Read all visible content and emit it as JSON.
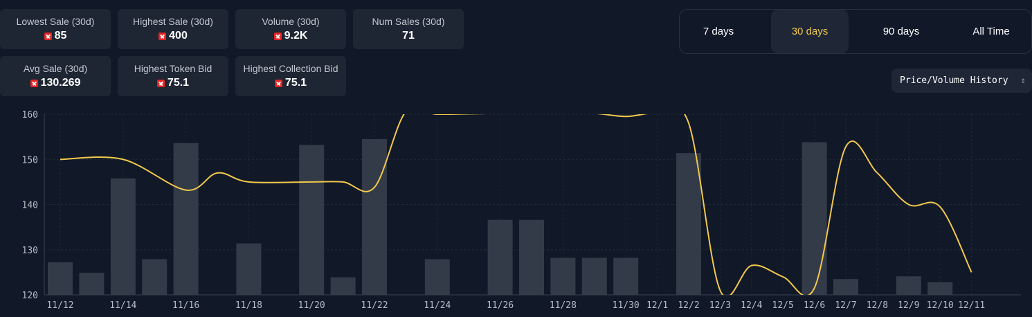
{
  "stats": [
    {
      "label": "Lowest Sale (30d)",
      "value": "85",
      "token": true
    },
    {
      "label": "Highest Sale (30d)",
      "value": "400",
      "token": true
    },
    {
      "label": "Volume (30d)",
      "value": "9.2K",
      "token": true
    },
    {
      "label": "Num Sales (30d)",
      "value": "71",
      "token": false
    },
    {
      "label": "Avg Sale (30d)",
      "value": "130.269",
      "token": true
    },
    {
      "label": "Highest Token Bid",
      "value": "75.1",
      "token": true
    },
    {
      "label": "Highest Collection Bid",
      "value": "75.1",
      "token": true
    }
  ],
  "time_range": {
    "options": [
      "7 days",
      "30 days",
      "90 days",
      "All Time"
    ],
    "selected": "30 days"
  },
  "view_select": {
    "value": "Price/Volume History"
  },
  "icons": {
    "token": "red-cross-token-icon",
    "select": "chevron-up-down-icon"
  },
  "colors": {
    "line": "#f2c94c",
    "bars": "#333b48",
    "active": "#f2c94c",
    "background": "#111827"
  },
  "chart_data": {
    "type": "bar+line",
    "ylim": [
      120,
      160
    ],
    "yticks": [
      120,
      130,
      140,
      150,
      160
    ],
    "x": [
      "11/12",
      "11/13",
      "11/14",
      "11/15",
      "11/16",
      "11/17",
      "11/18",
      "11/19",
      "11/20",
      "11/21",
      "11/22",
      "11/23",
      "11/24",
      "11/25",
      "11/26",
      "11/27",
      "11/28",
      "11/29",
      "11/30",
      "12/1",
      "12/2",
      "12/3",
      "12/4",
      "12/5",
      "12/6",
      "12/7",
      "12/8",
      "12/9",
      "12/10",
      "12/11"
    ],
    "x_labels": [
      "11/12",
      "11/14",
      "11/16",
      "11/18",
      "11/20",
      "11/22",
      "11/24",
      "11/26",
      "11/28",
      "11/30",
      "12/1",
      "12/2",
      "12/3",
      "12/4",
      "12/5",
      "12/6",
      "12/7",
      "12/8",
      "12/9",
      "12/10",
      "12/11"
    ],
    "bars": [
      {
        "x": "11/12",
        "value": 127.2
      },
      {
        "x": "11/13",
        "value": 124.9
      },
      {
        "x": "11/14",
        "value": 145.8
      },
      {
        "x": "11/15",
        "value": 127.9
      },
      {
        "x": "11/16",
        "value": 153.6
      },
      {
        "x": "11/18",
        "value": 131.4
      },
      {
        "x": "11/20",
        "value": 153.2
      },
      {
        "x": "11/21",
        "value": 123.9
      },
      {
        "x": "11/22",
        "value": 154.5
      },
      {
        "x": "11/24",
        "value": 127.9
      },
      {
        "x": "11/26",
        "value": 136.6
      },
      {
        "x": "11/27",
        "value": 136.6
      },
      {
        "x": "11/28",
        "value": 128.2
      },
      {
        "x": "11/29",
        "value": 128.2
      },
      {
        "x": "11/30",
        "value": 128.2
      },
      {
        "x": "12/2",
        "value": 151.4
      },
      {
        "x": "12/6",
        "value": 153.8
      },
      {
        "x": "12/7",
        "value": 123.5
      },
      {
        "x": "12/9",
        "value": 124.1
      },
      {
        "x": "12/10",
        "value": 122.8
      }
    ],
    "line": [
      {
        "x": "11/12",
        "value": 150.0
      },
      {
        "x": "11/14",
        "value": 150.0
      },
      {
        "x": "11/16",
        "value": 143.2
      },
      {
        "x": "11/17",
        "value": 147.0
      },
      {
        "x": "11/18",
        "value": 145.0
      },
      {
        "x": "11/20",
        "value": 145.0
      },
      {
        "x": "11/21",
        "value": 145.0
      },
      {
        "x": "11/22",
        "value": 143.8
      },
      {
        "x": "11/23",
        "value": 160.6
      },
      {
        "x": "11/24",
        "value": 160.0
      },
      {
        "x": "11/26",
        "value": 160.2
      },
      {
        "x": "11/28",
        "value": 160.2
      },
      {
        "x": "11/29",
        "value": 160.2
      },
      {
        "x": "11/30",
        "value": 159.5
      },
      {
        "x": "12/1",
        "value": 160.2
      },
      {
        "x": "12/2",
        "value": 158.0
      },
      {
        "x": "12/3",
        "value": 121.0
      },
      {
        "x": "12/4",
        "value": 126.5
      },
      {
        "x": "12/5",
        "value": 124.0
      },
      {
        "x": "12/6",
        "value": 121.5
      },
      {
        "x": "12/7",
        "value": 152.8
      },
      {
        "x": "12/8",
        "value": 147.0
      },
      {
        "x": "12/9",
        "value": 140.0
      },
      {
        "x": "12/10",
        "value": 139.5
      },
      {
        "x": "12/11",
        "value": 125.0
      }
    ]
  }
}
